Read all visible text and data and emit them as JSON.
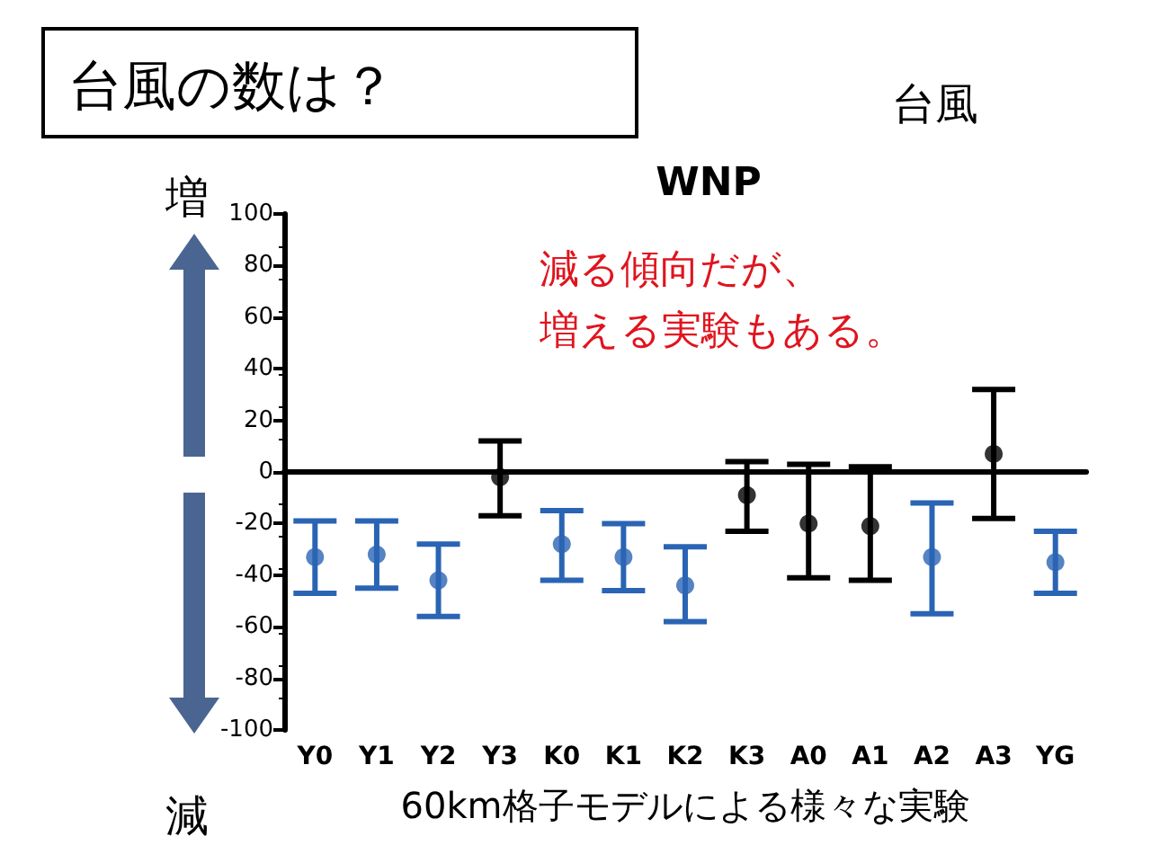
{
  "chart_data": {
    "type": "scatter",
    "title": "WNP",
    "xlabel": "60km格子モデルによる様々な実験",
    "categories": [
      "Y0",
      "Y1",
      "Y2",
      "Y3",
      "K0",
      "K1",
      "K2",
      "K3",
      "A0",
      "A1",
      "A2",
      "A3",
      "YG"
    ],
    "series": [
      {
        "color": "#2a64b4",
        "values": [
          -33,
          -32,
          -42,
          null,
          -28,
          -33,
          -44,
          null,
          null,
          null,
          -33,
          null,
          -35
        ],
        "errors": [
          [
            -47,
            -19
          ],
          [
            -45,
            -19
          ],
          [
            -56,
            -28
          ],
          null,
          [
            -42,
            -15
          ],
          [
            -46,
            -20
          ],
          [
            -58,
            -29
          ],
          null,
          null,
          null,
          [
            -55,
            -12
          ],
          null,
          [
            -47,
            -23
          ]
        ]
      },
      {
        "color": "#000000",
        "values": [
          null,
          null,
          null,
          -2,
          null,
          null,
          null,
          -9,
          -20,
          -21,
          null,
          7,
          null
        ],
        "errors": [
          null,
          null,
          null,
          [
            -17,
            12
          ],
          null,
          null,
          null,
          [
            -23,
            4
          ],
          [
            -41,
            3
          ],
          [
            -42,
            2
          ],
          null,
          [
            -18,
            32
          ],
          null
        ]
      }
    ],
    "ylim": [
      -100,
      100
    ],
    "yticks": [
      -100,
      -80,
      -60,
      -40,
      -20,
      0,
      20,
      40,
      60,
      80,
      100
    ],
    "ref_lines": [
      {
        "axis": "y",
        "value": 0,
        "color": "#000000"
      }
    ],
    "marker": "circle",
    "grid": false,
    "annotations": [
      "台風の数は？",
      "台風",
      "増",
      "減",
      "減る傾向だが、",
      "増える実験もある。"
    ]
  }
}
